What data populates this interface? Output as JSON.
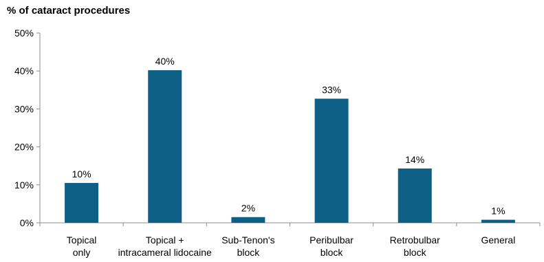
{
  "chart_data": {
    "type": "bar",
    "title": "% of cataract procedures",
    "xlabel": "",
    "ylabel": "",
    "categories": [
      [
        "Topical",
        "only"
      ],
      [
        "Topical +",
        "intracameral lidocaine"
      ],
      [
        "Sub-Tenon's",
        "block"
      ],
      [
        "Peribulbar",
        "block"
      ],
      [
        "Retrobulbar",
        "block"
      ],
      [
        "General"
      ]
    ],
    "values": [
      10,
      40,
      2,
      33,
      14,
      1
    ],
    "bar_values": [
      10.5,
      40.2,
      1.5,
      32.7,
      14.3,
      0.8
    ],
    "data_labels": [
      "10%",
      "40%",
      "2%",
      "33%",
      "14%",
      "1%"
    ],
    "ylim": [
      0,
      50
    ],
    "yticks": [
      "0%",
      "10%",
      "20%",
      "30%",
      "40%",
      "50%"
    ],
    "grid": false,
    "legend": "none",
    "bar_color": "#0d5f86"
  }
}
